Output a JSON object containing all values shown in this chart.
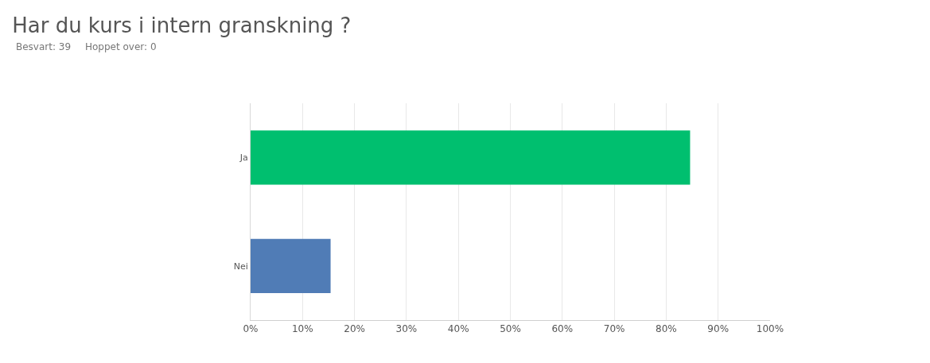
{
  "chart_data": {
    "type": "bar",
    "orientation": "horizontal",
    "title": "Har du kurs i intern granskning ?",
    "annotations": [
      "Besvart: 39",
      "Hoppet over: 0"
    ],
    "categories": [
      "Ja",
      "Nei"
    ],
    "values": [
      84.6,
      15.4
    ],
    "colors": [
      "#00bf6f",
      "#507cb6"
    ],
    "xlim": [
      0,
      100
    ],
    "xticks": [
      {
        "value": 0,
        "label": "0%"
      },
      {
        "value": 10,
        "label": "10%"
      },
      {
        "value": 20,
        "label": "20%"
      },
      {
        "value": 30,
        "label": "30%"
      },
      {
        "value": 40,
        "label": "40%"
      },
      {
        "value": 50,
        "label": "50%"
      },
      {
        "value": 60,
        "label": "60%"
      },
      {
        "value": 70,
        "label": "70%"
      },
      {
        "value": 80,
        "label": "80%"
      },
      {
        "value": 90,
        "label": "90%"
      },
      {
        "value": 100,
        "label": "100%"
      }
    ],
    "grid": "x"
  }
}
